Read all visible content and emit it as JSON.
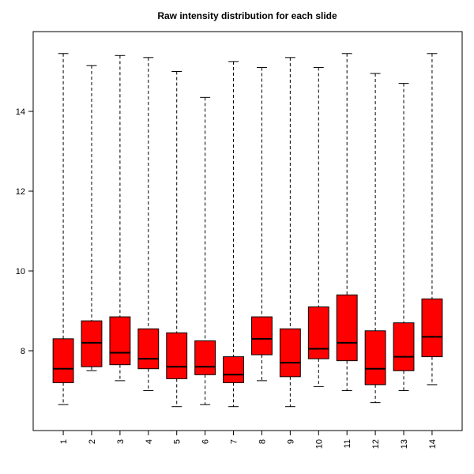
{
  "chart_data": {
    "type": "boxplot",
    "title": "Raw intensity distribution for each slide",
    "categories": [
      "1",
      "2",
      "3",
      "4",
      "5",
      "6",
      "7",
      "8",
      "9",
      "10",
      "11",
      "12",
      "13",
      "14"
    ],
    "ylim": [
      6,
      16
    ],
    "yticks": [
      8,
      10,
      12,
      14
    ],
    "grid": false,
    "legend": "none",
    "box_fill": "#ff0000",
    "box_stroke": "#000000",
    "whisker_style": "dashed",
    "series": [
      {
        "label": "1",
        "low": 6.65,
        "q1": 7.2,
        "median": 7.55,
        "q3": 8.3,
        "high": 15.45
      },
      {
        "label": "2",
        "low": 7.5,
        "q1": 7.6,
        "median": 8.2,
        "q3": 8.75,
        "high": 15.15
      },
      {
        "label": "3",
        "low": 7.25,
        "q1": 7.65,
        "median": 7.95,
        "q3": 8.85,
        "high": 15.4
      },
      {
        "label": "4",
        "low": 7.0,
        "q1": 7.55,
        "median": 7.8,
        "q3": 8.55,
        "high": 15.35
      },
      {
        "label": "5",
        "low": 6.6,
        "q1": 7.3,
        "median": 7.6,
        "q3": 8.45,
        "high": 15.0
      },
      {
        "label": "6",
        "low": 6.65,
        "q1": 7.4,
        "median": 7.6,
        "q3": 8.25,
        "high": 14.35
      },
      {
        "label": "7",
        "low": 6.6,
        "q1": 7.2,
        "median": 7.4,
        "q3": 7.85,
        "high": 15.25
      },
      {
        "label": "8",
        "low": 7.25,
        "q1": 7.9,
        "median": 8.3,
        "q3": 8.85,
        "high": 15.1
      },
      {
        "label": "9",
        "low": 6.6,
        "q1": 7.35,
        "median": 7.7,
        "q3": 8.55,
        "high": 15.35
      },
      {
        "label": "10",
        "low": 7.1,
        "q1": 7.8,
        "median": 8.05,
        "q3": 9.1,
        "high": 15.1
      },
      {
        "label": "11",
        "low": 7.0,
        "q1": 7.75,
        "median": 8.2,
        "q3": 9.4,
        "high": 15.45
      },
      {
        "label": "12",
        "low": 6.7,
        "q1": 7.15,
        "median": 7.55,
        "q3": 8.5,
        "high": 14.95
      },
      {
        "label": "13",
        "low": 7.0,
        "q1": 7.5,
        "median": 7.85,
        "q3": 8.7,
        "high": 14.7
      },
      {
        "label": "14",
        "low": 7.15,
        "q1": 7.85,
        "median": 8.35,
        "q3": 9.3,
        "high": 15.45
      }
    ]
  }
}
